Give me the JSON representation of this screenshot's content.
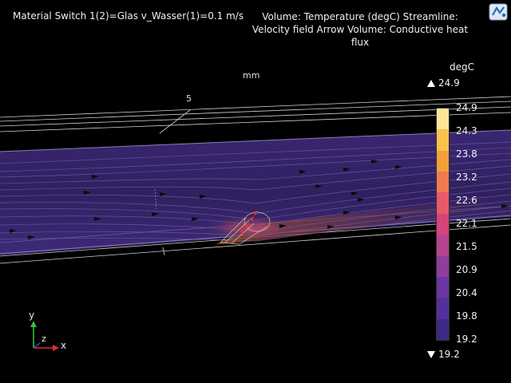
{
  "plot": {
    "title": "Material Switch 1(2)=Glas v_Wasser(1)=0.1 m/s",
    "description": "Volume: Temperature (degC)  Streamline: Velocity field  Arrow Volume: Conductive heat flux",
    "units": "mm",
    "axis_tick": "5"
  },
  "colorbar": {
    "unit": "degC",
    "max": "24.9",
    "min": "19.2",
    "labels": [
      "24.9",
      "24.3",
      "23.8",
      "23.2",
      "22.6",
      "22.1",
      "21.5",
      "20.9",
      "20.4",
      "19.8",
      "19.2"
    ],
    "colors": [
      "#fde59a",
      "#f9c24a",
      "#f5a03a",
      "#f07a52",
      "#e85a6a",
      "#d6447c",
      "#b5448f",
      "#8e3e9c",
      "#6b36a0",
      "#53309a",
      "#3c2a86"
    ]
  },
  "triad": {
    "x": "x",
    "y": "y",
    "z": "z"
  },
  "icons": {
    "logo": "comsol-logo-icon"
  }
}
